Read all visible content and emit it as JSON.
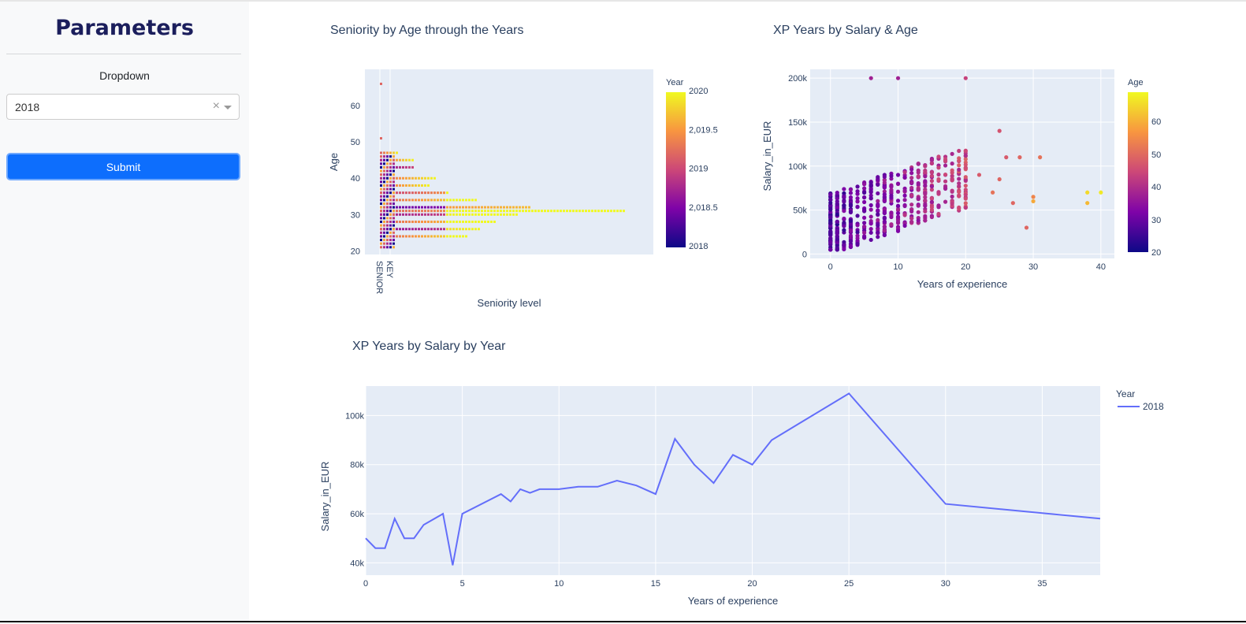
{
  "sidebar": {
    "title": "Parameters",
    "dropdown_label": "Dropdown",
    "dropdown_value": "2018",
    "clear_glyph": "×",
    "submit_label": "Submit"
  },
  "colors": {
    "plot_bg": "#e5ecf6",
    "line": "#636efa",
    "sidebar_bg": "#f8f9fa",
    "button": "#0d6efd"
  },
  "chart_data": [
    {
      "type": "scatter",
      "title": "Seniority by Age through the Years",
      "xlabel": "Seniority level",
      "ylabel": "Age",
      "categories": [
        "SENIOR",
        "KEY"
      ],
      "ylim": [
        19,
        70
      ],
      "y_ticks": [
        20,
        30,
        40,
        50,
        60
      ],
      "colorbar": {
        "title": "Year",
        "range": [
          2018,
          2020
        ],
        "ticks": [
          "2020",
          "2,019.5",
          "2019",
          "2,018.5",
          "2018"
        ]
      },
      "note_rows": [
        {
          "age": 24,
          "extent": 0.32,
          "year": 2020
        },
        {
          "age": 26,
          "extent": 0.36,
          "year": 2019
        },
        {
          "age": 28,
          "extent": 0.42,
          "year": 2020
        },
        {
          "age": 30,
          "extent": 0.5,
          "year": 2019.2
        },
        {
          "age": 31,
          "extent": 0.9,
          "year": 2020
        },
        {
          "age": 32,
          "extent": 0.55,
          "year": 2018.7
        },
        {
          "age": 34,
          "extent": 0.35,
          "year": 2020
        },
        {
          "age": 36,
          "extent": 0.25,
          "year": 2019.5
        },
        {
          "age": 38,
          "extent": 0.18,
          "year": 2020
        },
        {
          "age": 40,
          "extent": 0.2,
          "year": 2020
        },
        {
          "age": 43,
          "extent": 0.12,
          "year": 2019
        },
        {
          "age": 45,
          "extent": 0.12,
          "year": 2020
        },
        {
          "age": 47,
          "extent": 0.06,
          "year": 2020
        },
        {
          "age": 51,
          "extent": 0.01,
          "year": 2020
        },
        {
          "age": 66,
          "extent": 0.01,
          "year": 2020
        }
      ]
    },
    {
      "type": "scatter",
      "title": "XP Years by Salary & Age",
      "xlabel": "Years of experience",
      "ylabel": "Salary_in_EUR",
      "xlim": [
        -3,
        42
      ],
      "ylim": [
        -5000,
        210000
      ],
      "x_ticks": [
        0,
        10,
        20,
        30,
        40
      ],
      "y_ticks": [
        0,
        50000,
        100000,
        150000,
        200000
      ],
      "y_tick_labels": [
        "0",
        "50k",
        "100k",
        "150k",
        "200k"
      ],
      "colorbar": {
        "title": "Age",
        "range": [
          20,
          70
        ],
        "ticks": [
          "60",
          "50",
          "40",
          "30",
          "20"
        ]
      }
    },
    {
      "type": "line",
      "title": "XP Years by Salary by Year",
      "xlabel": "Years of experience",
      "ylabel": "Salary_in_EUR",
      "xlim": [
        0,
        38
      ],
      "ylim": [
        35000,
        112000
      ],
      "x_ticks": [
        0,
        5,
        10,
        15,
        20,
        25,
        30,
        35
      ],
      "y_ticks": [
        40000,
        60000,
        80000,
        100000
      ],
      "y_tick_labels": [
        "40k",
        "60k",
        "80k",
        "100k"
      ],
      "legend": {
        "title": "Year",
        "placement": "top-right"
      },
      "series": [
        {
          "name": "2018",
          "x": [
            0,
            0.5,
            1,
            1.5,
            2,
            2.5,
            3,
            4,
            4.5,
            5,
            7,
            7.5,
            8,
            8.5,
            9,
            10,
            11,
            12,
            13,
            14,
            15,
            16,
            17,
            18,
            19,
            20,
            21,
            25,
            30,
            38
          ],
          "y": [
            50000,
            46000,
            46000,
            58000,
            50000,
            50000,
            55500,
            60000,
            39000,
            60000,
            68000,
            65000,
            70000,
            68500,
            70000,
            70000,
            71000,
            71000,
            73500,
            71500,
            68000,
            90500,
            80000,
            72500,
            84000,
            80000,
            90000,
            109000,
            64000,
            58000
          ]
        }
      ]
    }
  ]
}
